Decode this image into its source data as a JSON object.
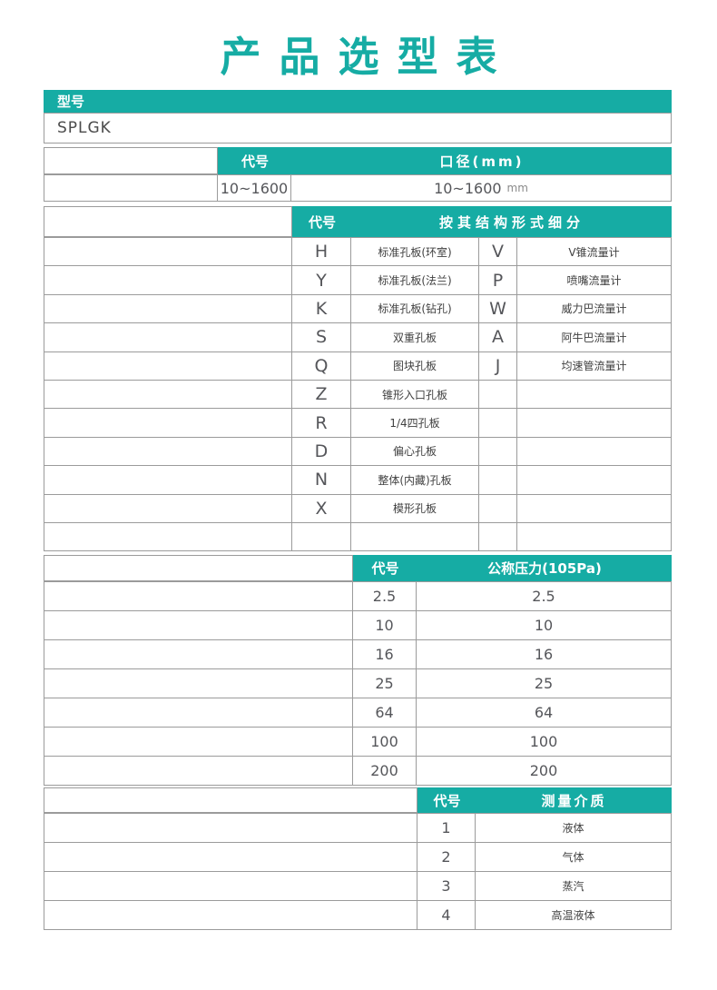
{
  "page_title": "产品选型表",
  "colors": {
    "accent": "#16aca4",
    "border": "#9b9b9b"
  },
  "model_section": {
    "header": "型号",
    "value": "SPLGK"
  },
  "diameter_section": {
    "code_header": "代号",
    "header": "口径(mm)",
    "code": "10~1600",
    "value": "10~1600",
    "unit": "mm"
  },
  "structure_section": {
    "code_header": "代号",
    "header": "按其结构形式细分",
    "rows": [
      {
        "code": "H",
        "desc": "标准孔板(环室)",
        "code2": "V",
        "desc2": "V锥流量计"
      },
      {
        "code": "Y",
        "desc": "标准孔板(法兰)",
        "code2": "P",
        "desc2": "喷嘴流量计"
      },
      {
        "code": "K",
        "desc": "标准孔板(钻孔)",
        "code2": "W",
        "desc2": "威力巴流量计"
      },
      {
        "code": "S",
        "desc": "双重孔板",
        "code2": "A",
        "desc2": "阿牛巴流量计"
      },
      {
        "code": "Q",
        "desc": "图块孔板",
        "code2": "J",
        "desc2": "均速管流量计"
      },
      {
        "code": "Z",
        "desc": "锥形入口孔板",
        "code2": "",
        "desc2": ""
      },
      {
        "code": "R",
        "desc": "1/4四孔板",
        "code2": "",
        "desc2": ""
      },
      {
        "code": "D",
        "desc": "偏心孔板",
        "code2": "",
        "desc2": ""
      },
      {
        "code": "N",
        "desc": "整体(内藏)孔板",
        "code2": "",
        "desc2": ""
      },
      {
        "code": "X",
        "desc": "模形孔板",
        "code2": "",
        "desc2": ""
      },
      {
        "code": "",
        "desc": "",
        "code2": "",
        "desc2": ""
      }
    ]
  },
  "pressure_section": {
    "code_header": "代号",
    "header": "公称压力(105Pa)",
    "rows": [
      {
        "code": "2.5",
        "value": "2.5"
      },
      {
        "code": "10",
        "value": "10"
      },
      {
        "code": "16",
        "value": "16"
      },
      {
        "code": "25",
        "value": "25"
      },
      {
        "code": "64",
        "value": "64"
      },
      {
        "code": "100",
        "value": "100"
      },
      {
        "code": "200",
        "value": "200"
      }
    ]
  },
  "medium_section": {
    "code_header": "代号",
    "header": "测量介质",
    "rows": [
      {
        "code": "1",
        "value": "液体"
      },
      {
        "code": "2",
        "value": "气体"
      },
      {
        "code": "3",
        "value": "蒸汽"
      },
      {
        "code": "4",
        "value": "高温液体"
      }
    ]
  }
}
